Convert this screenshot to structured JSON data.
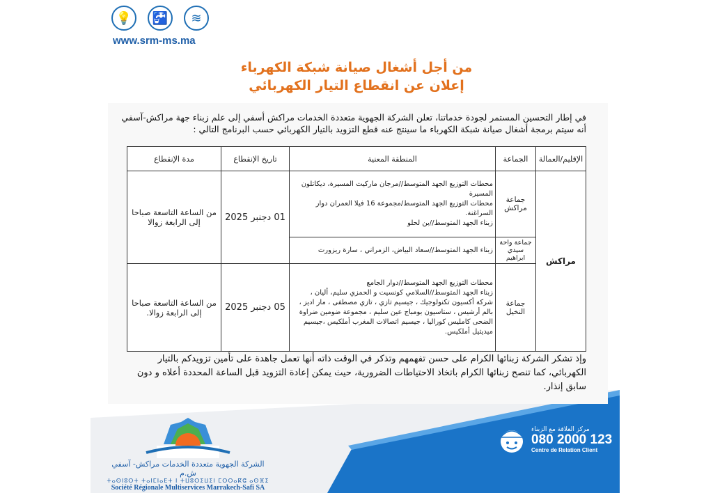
{
  "header": {
    "website": "www.srm-ms.ma",
    "icons": [
      "electricity-bulb-icon",
      "water-tap-icon",
      "sanitation-pipe-icon"
    ]
  },
  "title": {
    "line1": "من أجل أشغال صيانة شبكة الكهرباء",
    "line2": "إعلان عن انقطاع التيار الكهربائي"
  },
  "intro": "في إطار التحسين المستمر لجودة خدماتنا، تعلن الشركة الجهوية متعددة الخدمات مراكش أسفي إلى علم زبناء جهة مراكش-آسفي أنه سيتم برمجة أشغال صيانة شبكة الكهرباء ما سينتج عنه قطع التزويد بالتيار الكهربائي حسب البرنامج التالي :",
  "table": {
    "headers": [
      "الإقليم/العمالة",
      "الجماعة",
      "المنطقة المعنية",
      "تاريخ الإنقطاع",
      "مدة الإنقطاع"
    ],
    "province": "مراكش",
    "rows": [
      {
        "commune": "جماعة مراكش",
        "area": [
          "محطات التوزيع الجهد المتوسط//مرجان ماركيت المسيرة، ديكاتلون المسيرة",
          "محطات التوزيع الجهد المتوسط/مجموعة 16 فيلا العمران دوار السراغنة.",
          "زبناء الجهد المتوسط//بن لحلو"
        ],
        "date": "01 دجنبر 2025",
        "duration": "من الساعة التاسعة صباحا إلى الرابعة زوالا"
      },
      {
        "commune": "جماعة واحة سيدي ابراهيم",
        "area": [
          "زبناء الجهد المتوسط//سعاد البياض، الزمراني ، سارة ريزورت"
        ]
      },
      {
        "commune": "جماعة النخيل",
        "area": [
          "محطات التوزيع الجهد المتوسط//دوار الجامع",
          "زبناء الجهد المتوسط//السلامي كونسيت و الحمزي سليم، أليان ، شركة أكسيون تكنولوجيك ، جيسيم تازي ، تازي مصطفى ، مار اديز ، بالم أرشيس ، ستاسيون بومباج عين سليم ، مجموعة ضومين ضراوة الضحى كامليس كوراليا ، جيسيم اتصالات المغرب أملكيس ،جيسيم ميديتيل أملكيس."
        ],
        "date": "05 دجنبر 2025",
        "duration": "من الساعة التاسعة صباحا إلى الرابعة زوالا."
      }
    ]
  },
  "closing": "وإذ تشكر الشركة زبنائها الكرام على حسن تفهمهم وتذكر في الوقت ذاته أنها تعمل جاهدة على تأمين تزويدكم بالتيار الكهربائي، كما تنصح زبنائها الكرام باتخاذ الاحتياطات الضرورية، حيث يمكن إعادة التزويد قبل الساعة المحددة أعلاه و دون سابق إنذار.",
  "hotline": {
    "label_ar": "مركز العلاقة مع الزبناء",
    "number": "080 2000 123",
    "label_fr": "Centre de Relation Client"
  },
  "company": {
    "name_ar": "الشركة الجهوية متعددة الخدمات مراكش- آسفي ش.م",
    "name_tifinagh": "ⵜⴰⵙⵏⵓⵔⵜ ⵜⴰⵏⵎⵏⴰⴹⵜ ⵏ ⵜⵡⵓⵔⵉⵡⵉⵏ ⵎⵔⵔⴰⴽⵛ ⴰⵙⴼⵉ",
    "name_fr": "Société Régionale Multiservices Marrakech-Safi SA"
  },
  "colors": {
    "brand_blue": "#1f6fb5",
    "title_orange": "#e2711d",
    "band_blue": "#1a74c8"
  }
}
